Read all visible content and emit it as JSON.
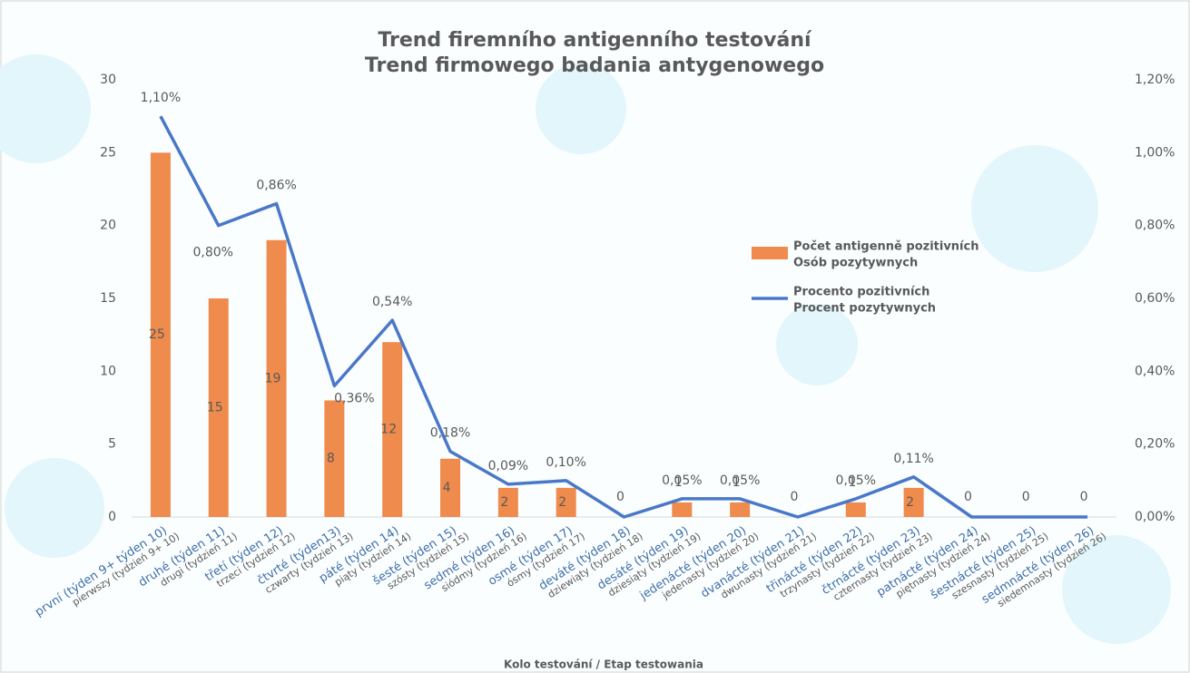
{
  "chart_data": {
    "type": "bar-line",
    "title": "Trend firemního antigenního testování",
    "subtitle": "Trend firmowego badania antygenowego",
    "x_label": "Kolo testování / Etap testowania",
    "categories": [
      [
        "první (týden 9+ týden 10)",
        "pierwszy (tydzień 9+ 10)"
      ],
      [
        "druhé (týden 11)",
        "drugi (tydzień 11)"
      ],
      [
        "třetí (týden 12)",
        "trzeci (tydzień 12)"
      ],
      [
        "čtvrté (týden13)",
        "czwarty (tydzień 13)"
      ],
      [
        "páté (týden 14)",
        "piąty (tydzień 14)"
      ],
      [
        "šesté (týden 15)",
        "szósty (tydzień 15)"
      ],
      [
        "sedmé (týden 16)",
        "siódmy (tydzień 16)"
      ],
      [
        "osmé (týden 17)",
        "ósmy (tydzień 17)"
      ],
      [
        "deváté (týden 18)",
        "dziewiąty (tydzień 18)"
      ],
      [
        "desáté (týden 19)",
        "dziesiąty (tydzień 19)"
      ],
      [
        "jedenácté (týden 20)",
        "jedenasty (tydzień 20)"
      ],
      [
        "dvanácté (týden 21)",
        "dwunasty (tydzień 21)"
      ],
      [
        "třinácté (týden 22)",
        "trzynasty (tydzień 22)"
      ],
      [
        "čtrnácté (týden 23)",
        "czternasty (tydzień 23)"
      ],
      [
        "patnácté (týden 24)",
        "piętnasty (tydzień 24)"
      ],
      [
        "šestnácté (týden 25)",
        "szesnasty (tydzień 25)"
      ],
      [
        "sedmnácté (týden 26)",
        "siedemnasty (tydzień 26)"
      ]
    ],
    "series": [
      {
        "name": [
          "Počet antigenně pozitivních",
          "Osób pozytywnych"
        ],
        "type": "bar",
        "color": "#ef8b4c",
        "values": [
          25,
          15,
          19,
          8,
          12,
          4,
          2,
          2,
          0,
          1,
          1,
          0,
          1,
          2,
          0,
          0,
          0
        ]
      },
      {
        "name": [
          "Procento pozitivních",
          "Procent pozytywnych"
        ],
        "type": "line",
        "axis": "y2",
        "color": "#4a78c8",
        "values": [
          1.1,
          0.8,
          0.86,
          0.36,
          0.54,
          0.18,
          0.09,
          0.1,
          0,
          0.05,
          0.05,
          0,
          0.05,
          0.11,
          0,
          0,
          0
        ],
        "value_labels": [
          "1,10%",
          "0,80%",
          "0,86%",
          "0,36%",
          "0,54%",
          "0,18%",
          "0,09%",
          "0,10%",
          null,
          "0,05%",
          "0,05%",
          null,
          "0,05%",
          "0,11%",
          null,
          null,
          null
        ]
      }
    ],
    "ylim": [
      0,
      30
    ],
    "yticks": [
      0,
      5,
      10,
      15,
      20,
      25,
      30
    ],
    "y2lim": [
      0,
      1.2
    ],
    "y2ticks": [
      {
        "value": 0,
        "label": "0,00%"
      },
      {
        "value": 0.2,
        "label": "0,20%"
      },
      {
        "value": 0.4,
        "label": "0,40%"
      },
      {
        "value": 0.6,
        "label": "0,60%"
      },
      {
        "value": 0.8,
        "label": "0,80%"
      },
      {
        "value": 1.0,
        "label": "1,00%"
      },
      {
        "value": 1.2,
        "label": "1,20%"
      }
    ],
    "grid": false
  }
}
